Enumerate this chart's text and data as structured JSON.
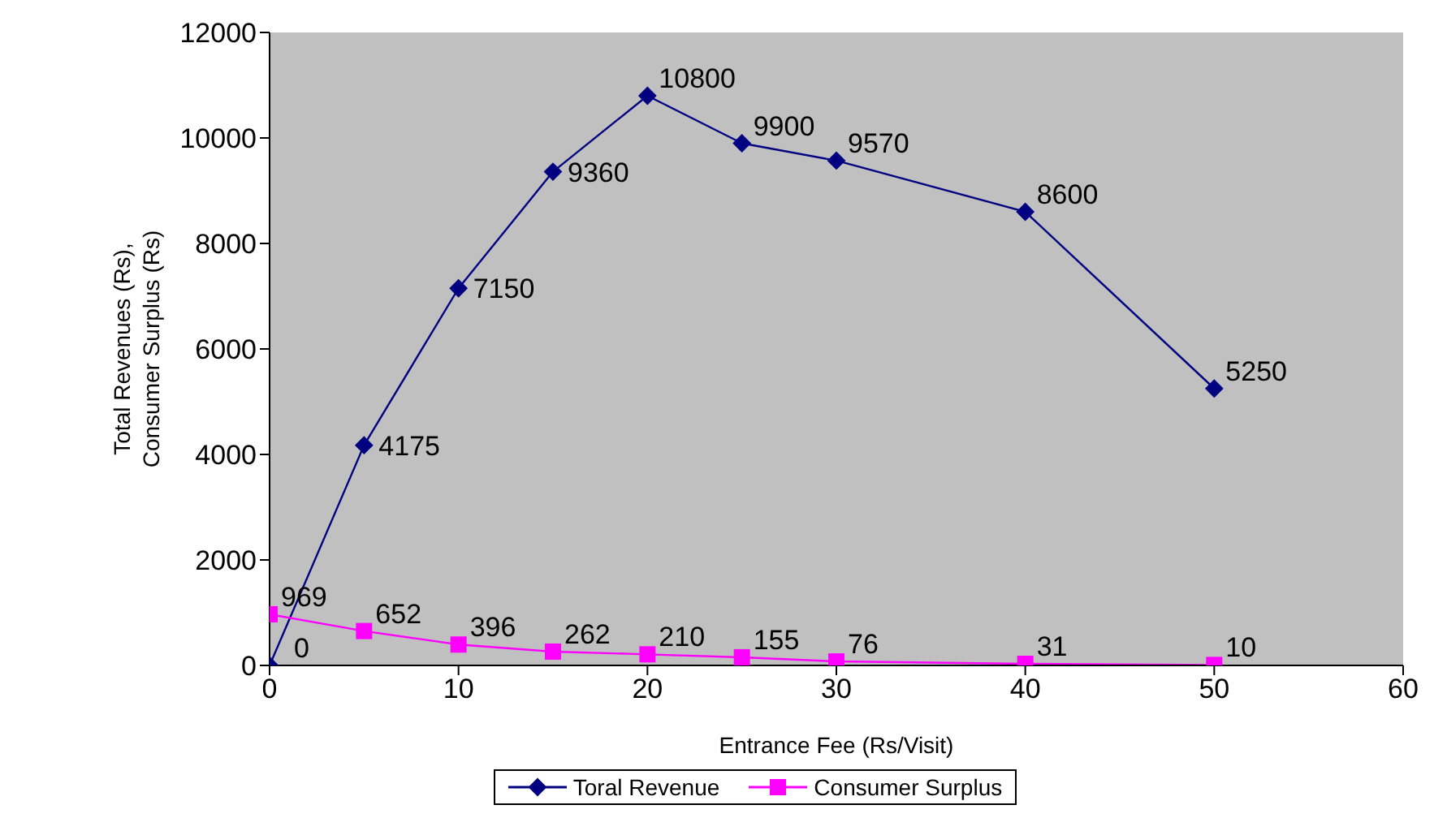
{
  "chart_data": {
    "type": "line",
    "xlabel": "Entrance Fee (Rs/Visit)",
    "ylabel": "Total Revenues (Rs), Consumer Surplus (Rs)",
    "x": [
      0,
      5,
      10,
      15,
      20,
      25,
      30,
      40,
      50
    ],
    "series": [
      {
        "name": "Toral Revenue",
        "color": "#000080",
        "marker": "diamond",
        "values": [
          0,
          4175,
          7150,
          9360,
          10800,
          9900,
          9570,
          8600,
          5250
        ]
      },
      {
        "name": "Consumer Surplus",
        "color": "#ff00ff",
        "marker": "square",
        "values": [
          969,
          652,
          396,
          262,
          210,
          155,
          76,
          31,
          10
        ]
      }
    ],
    "xlim": [
      0,
      60
    ],
    "xticks": [
      0,
      10,
      20,
      30,
      40,
      50,
      60
    ],
    "ylim": [
      0,
      12000
    ],
    "yticks": [
      0,
      2000,
      4000,
      6000,
      8000,
      10000,
      12000
    ],
    "data_labels": true,
    "grid": false,
    "legend": "bottom",
    "line_style": "solid"
  }
}
